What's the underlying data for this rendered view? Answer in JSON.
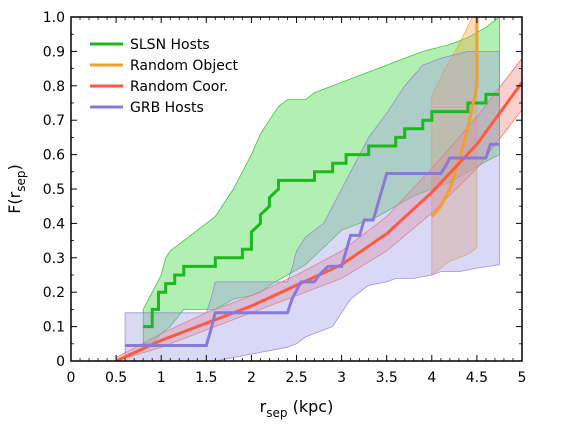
{
  "chart_data": {
    "type": "line",
    "xlabel": "r",
    "xlabel_sub": "sep",
    "xlabel_unit": " (kpc)",
    "ylabel": "F(r",
    "ylabel_sub": "sep",
    "ylabel_close": ")",
    "xlim": [
      0,
      5
    ],
    "ylim": [
      0,
      1
    ],
    "xticks": [
      0,
      0.5,
      1,
      1.5,
      2,
      2.5,
      3,
      3.5,
      4,
      4.5,
      5
    ],
    "xtick_labels": [
      "0",
      "0.5",
      "1",
      "1.5",
      "2",
      "2.5",
      "3",
      "3.5",
      "4",
      "4.5",
      "5"
    ],
    "yticks": [
      0,
      0.1,
      0.2,
      0.3,
      0.4,
      0.5,
      0.6,
      0.7,
      0.8,
      0.9,
      1.0
    ],
    "ytick_labels": [
      "0",
      "0.1",
      "0.2",
      "0.3",
      "0.4",
      "0.5",
      "0.6",
      "0.7",
      "0.8",
      "0.9",
      "1.0"
    ],
    "legend_position": "top-left",
    "grid": false,
    "series": [
      {
        "name": "SLSN Hosts",
        "color": "#1db81d",
        "band_color": "#3ed83e",
        "line": [
          [
            0.8,
            0.1
          ],
          [
            0.8,
            0.1
          ],
          [
            0.9,
            0.1
          ],
          [
            0.9,
            0.15
          ],
          [
            0.97,
            0.15
          ],
          [
            0.97,
            0.2
          ],
          [
            1.05,
            0.2
          ],
          [
            1.05,
            0.225
          ],
          [
            1.15,
            0.225
          ],
          [
            1.15,
            0.25
          ],
          [
            1.25,
            0.25
          ],
          [
            1.25,
            0.275
          ],
          [
            1.6,
            0.275
          ],
          [
            1.6,
            0.3
          ],
          [
            1.9,
            0.3
          ],
          [
            1.9,
            0.325
          ],
          [
            2.0,
            0.325
          ],
          [
            2.0,
            0.375
          ],
          [
            2.1,
            0.4
          ],
          [
            2.1,
            0.425
          ],
          [
            2.2,
            0.45
          ],
          [
            2.2,
            0.475
          ],
          [
            2.3,
            0.5
          ],
          [
            2.3,
            0.525
          ],
          [
            2.7,
            0.525
          ],
          [
            2.7,
            0.55
          ],
          [
            2.9,
            0.55
          ],
          [
            2.9,
            0.575
          ],
          [
            3.05,
            0.575
          ],
          [
            3.05,
            0.6
          ],
          [
            3.3,
            0.6
          ],
          [
            3.3,
            0.625
          ],
          [
            3.6,
            0.625
          ],
          [
            3.6,
            0.65
          ],
          [
            3.7,
            0.65
          ],
          [
            3.7,
            0.675
          ],
          [
            3.9,
            0.675
          ],
          [
            3.9,
            0.7
          ],
          [
            4.0,
            0.7
          ],
          [
            4.0,
            0.725
          ],
          [
            4.4,
            0.725
          ],
          [
            4.4,
            0.75
          ],
          [
            4.6,
            0.75
          ],
          [
            4.6,
            0.775
          ],
          [
            4.75,
            0.775
          ]
        ],
        "band_upper": [
          [
            0.8,
            0.15
          ],
          [
            0.9,
            0.2
          ],
          [
            1.0,
            0.25
          ],
          [
            1.05,
            0.3
          ],
          [
            1.1,
            0.32
          ],
          [
            1.25,
            0.35
          ],
          [
            1.4,
            0.38
          ],
          [
            1.5,
            0.4
          ],
          [
            1.6,
            0.42
          ],
          [
            1.8,
            0.5
          ],
          [
            1.9,
            0.55
          ],
          [
            2.0,
            0.6
          ],
          [
            2.1,
            0.66
          ],
          [
            2.2,
            0.7
          ],
          [
            2.3,
            0.74
          ],
          [
            2.4,
            0.76
          ],
          [
            2.6,
            0.76
          ],
          [
            2.7,
            0.78
          ],
          [
            2.9,
            0.8
          ],
          [
            3.1,
            0.82
          ],
          [
            3.3,
            0.84
          ],
          [
            3.5,
            0.86
          ],
          [
            3.7,
            0.88
          ],
          [
            3.9,
            0.9
          ],
          [
            4.2,
            0.92
          ],
          [
            4.4,
            0.94
          ],
          [
            4.6,
            0.97
          ],
          [
            4.75,
            1.0
          ]
        ],
        "band_lower": [
          [
            4.75,
            0.6
          ],
          [
            4.6,
            0.58
          ],
          [
            4.4,
            0.55
          ],
          [
            4.2,
            0.52
          ],
          [
            4.0,
            0.5
          ],
          [
            3.8,
            0.48
          ],
          [
            3.6,
            0.45
          ],
          [
            3.4,
            0.42
          ],
          [
            3.2,
            0.4
          ],
          [
            3.0,
            0.38
          ],
          [
            2.8,
            0.33
          ],
          [
            2.6,
            0.28
          ],
          [
            2.4,
            0.25
          ],
          [
            2.2,
            0.22
          ],
          [
            2.1,
            0.2
          ],
          [
            2.0,
            0.19
          ],
          [
            1.8,
            0.18
          ],
          [
            1.6,
            0.15
          ],
          [
            1.4,
            0.15
          ],
          [
            1.25,
            0.15
          ],
          [
            1.1,
            0.1
          ],
          [
            1.0,
            0.08
          ],
          [
            0.9,
            0.05
          ],
          [
            0.8,
            0.05
          ]
        ]
      },
      {
        "name": "Random Object",
        "color": "#f0a030",
        "band_color": "#f3a94d",
        "line": [
          [
            4.0,
            0.42
          ],
          [
            4.1,
            0.45
          ],
          [
            4.2,
            0.5
          ],
          [
            4.3,
            0.58
          ],
          [
            4.4,
            0.68
          ],
          [
            4.5,
            0.8
          ],
          [
            4.5,
            1.0
          ]
        ],
        "band_upper": [
          [
            4.0,
            0.77
          ],
          [
            4.15,
            0.85
          ],
          [
            4.3,
            0.92
          ],
          [
            4.45,
            1.0
          ],
          [
            4.5,
            1.0
          ]
        ],
        "band_lower": [
          [
            4.5,
            0.33
          ],
          [
            4.4,
            0.31
          ],
          [
            4.3,
            0.3
          ],
          [
            4.2,
            0.29
          ],
          [
            4.1,
            0.27
          ],
          [
            4.0,
            0.25
          ]
        ]
      },
      {
        "name": "Random Coor.",
        "color": "#ff5a40",
        "band_color": "#f38a86",
        "line": [
          [
            0.5,
            0.0
          ],
          [
            1.0,
            0.06
          ],
          [
            1.5,
            0.11
          ],
          [
            2.0,
            0.16
          ],
          [
            2.5,
            0.22
          ],
          [
            3.0,
            0.28
          ],
          [
            3.5,
            0.37
          ],
          [
            4.0,
            0.49
          ],
          [
            4.5,
            0.63
          ],
          [
            5.0,
            0.81
          ]
        ],
        "band_upper": [
          [
            0.5,
            0.01
          ],
          [
            1.0,
            0.08
          ],
          [
            1.5,
            0.14
          ],
          [
            2.0,
            0.19
          ],
          [
            2.5,
            0.25
          ],
          [
            3.0,
            0.32
          ],
          [
            3.5,
            0.42
          ],
          [
            4.0,
            0.56
          ],
          [
            4.5,
            0.71
          ],
          [
            5.0,
            0.88
          ]
        ],
        "band_lower": [
          [
            5.0,
            0.73
          ],
          [
            4.5,
            0.56
          ],
          [
            4.0,
            0.43
          ],
          [
            3.5,
            0.32
          ],
          [
            3.0,
            0.24
          ],
          [
            2.5,
            0.19
          ],
          [
            2.0,
            0.14
          ],
          [
            1.5,
            0.09
          ],
          [
            1.0,
            0.04
          ],
          [
            0.5,
            0.0
          ]
        ]
      },
      {
        "name": "GRB Hosts",
        "color": "#8a7ad8",
        "band_color": "#a59ee6",
        "line": [
          [
            0.6,
            0.045
          ],
          [
            1.5,
            0.045
          ],
          [
            1.5,
            0.045
          ],
          [
            1.55,
            0.09
          ],
          [
            1.6,
            0.14
          ],
          [
            2.4,
            0.14
          ],
          [
            2.45,
            0.18
          ],
          [
            2.55,
            0.23
          ],
          [
            2.7,
            0.23
          ],
          [
            2.75,
            0.25
          ],
          [
            2.85,
            0.275
          ],
          [
            3.0,
            0.275
          ],
          [
            3.05,
            0.32
          ],
          [
            3.1,
            0.365
          ],
          [
            3.2,
            0.365
          ],
          [
            3.25,
            0.41
          ],
          [
            3.35,
            0.41
          ],
          [
            3.4,
            0.455
          ],
          [
            3.45,
            0.5
          ],
          [
            3.5,
            0.545
          ],
          [
            4.1,
            0.545
          ],
          [
            4.15,
            0.565
          ],
          [
            4.2,
            0.59
          ],
          [
            4.25,
            0.59
          ],
          [
            4.3,
            0.59
          ],
          [
            4.35,
            0.59
          ],
          [
            4.45,
            0.59
          ],
          [
            4.5,
            0.59
          ],
          [
            4.6,
            0.59
          ],
          [
            4.65,
            0.63
          ],
          [
            4.75,
            0.63
          ]
        ],
        "band_upper": [
          [
            0.6,
            0.14
          ],
          [
            1.5,
            0.14
          ],
          [
            1.55,
            0.18
          ],
          [
            1.6,
            0.23
          ],
          [
            2.4,
            0.23
          ],
          [
            2.45,
            0.27
          ],
          [
            2.5,
            0.32
          ],
          [
            2.6,
            0.36
          ],
          [
            2.8,
            0.4
          ],
          [
            2.9,
            0.45
          ],
          [
            3.0,
            0.5
          ],
          [
            3.1,
            0.55
          ],
          [
            3.2,
            0.6
          ],
          [
            3.3,
            0.65
          ],
          [
            3.5,
            0.72
          ],
          [
            3.7,
            0.8
          ],
          [
            3.9,
            0.86
          ],
          [
            4.1,
            0.88
          ],
          [
            4.4,
            0.9
          ],
          [
            4.6,
            0.9
          ],
          [
            4.75,
            0.9
          ]
        ],
        "band_lower": [
          [
            4.75,
            0.28
          ],
          [
            4.5,
            0.27
          ],
          [
            4.3,
            0.26
          ],
          [
            4.1,
            0.26
          ],
          [
            4.0,
            0.25
          ],
          [
            3.8,
            0.24
          ],
          [
            3.6,
            0.24
          ],
          [
            3.5,
            0.23
          ],
          [
            3.3,
            0.22
          ],
          [
            3.1,
            0.18
          ],
          [
            3.0,
            0.14
          ],
          [
            2.9,
            0.1
          ],
          [
            2.8,
            0.09
          ],
          [
            2.6,
            0.07
          ],
          [
            2.5,
            0.05
          ],
          [
            2.4,
            0.04
          ],
          [
            2.0,
            0.02
          ],
          [
            1.6,
            0.0
          ],
          [
            1.5,
            0.0
          ],
          [
            0.6,
            0.0
          ]
        ]
      }
    ]
  }
}
